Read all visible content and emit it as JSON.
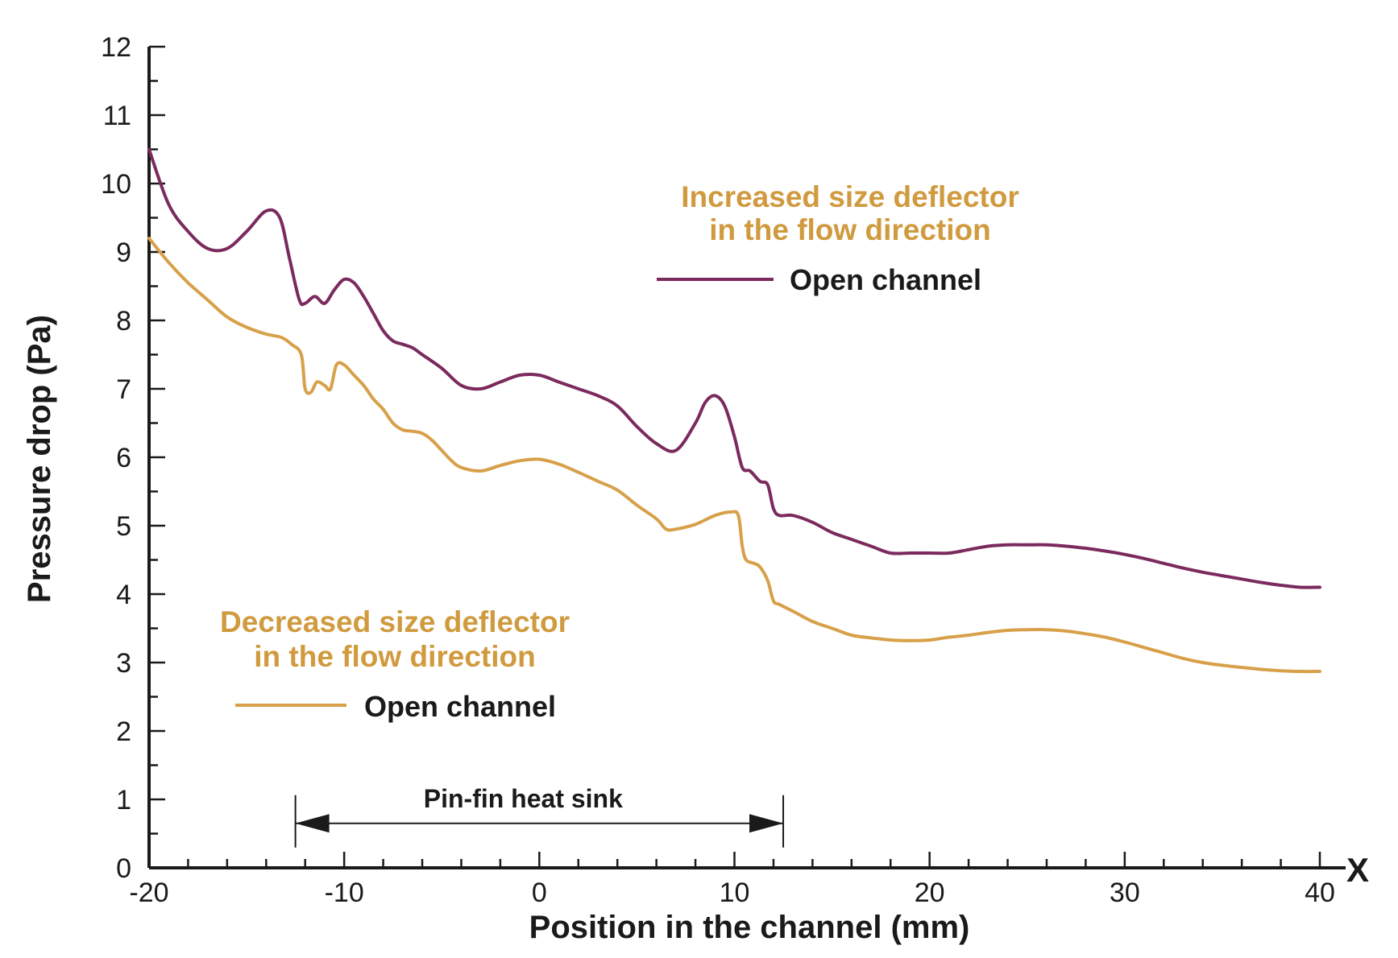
{
  "chart_data": {
    "type": "line",
    "xlabel": "Position in the channel (mm)",
    "ylabel": "Pressure drop (Pa)",
    "x_axis_marker": "X",
    "xlim": [
      -20,
      40
    ],
    "ylim": [
      0,
      12
    ],
    "x_ticks": [
      -20,
      -10,
      0,
      10,
      20,
      30,
      40
    ],
    "y_ticks": [
      0,
      1,
      2,
      3,
      4,
      5,
      6,
      7,
      8,
      9,
      10,
      11,
      12
    ],
    "x_tick_labels": [
      "-20",
      "-10",
      "0",
      "10",
      "20",
      "30",
      "40"
    ],
    "y_tick_labels": [
      "0",
      "1",
      "2",
      "3",
      "4",
      "5",
      "6",
      "7",
      "8",
      "9",
      "10",
      "11",
      "12"
    ],
    "grid": false,
    "series": [
      {
        "name": "Increased size deflector in the flow direction — Open channel",
        "legend_title_line1": "Increased size deflector",
        "legend_title_line2": "in the flow direction",
        "legend_label": "Open channel",
        "color": "#7b2a5e",
        "title_color": "#d09a3e",
        "x": [
          -20,
          -19,
          -18,
          -17,
          -16,
          -15,
          -14,
          -13.3,
          -12.8,
          -12.3,
          -12,
          -11.5,
          -11,
          -10.5,
          -10,
          -9.5,
          -9,
          -8.5,
          -8,
          -7.5,
          -7,
          -6.5,
          -6,
          -5,
          -4,
          -3,
          -2,
          -1,
          0,
          1,
          2,
          3,
          4,
          5,
          6,
          7,
          8,
          8.5,
          9,
          9.5,
          10,
          10.4,
          10.8,
          11.3,
          11.7,
          12,
          12.3,
          13,
          14,
          15,
          16,
          17,
          18,
          19,
          20,
          21,
          22,
          23,
          24,
          25,
          26,
          27,
          28,
          29,
          30,
          31,
          32,
          33,
          34,
          35,
          36,
          37,
          38,
          39,
          40
        ],
        "y": [
          10.5,
          9.7,
          9.3,
          9.05,
          9.05,
          9.3,
          9.6,
          9.5,
          8.9,
          8.3,
          8.25,
          8.35,
          8.25,
          8.45,
          8.6,
          8.55,
          8.35,
          8.1,
          7.85,
          7.7,
          7.65,
          7.6,
          7.5,
          7.3,
          7.05,
          7.0,
          7.1,
          7.2,
          7.2,
          7.1,
          7.0,
          6.9,
          6.75,
          6.45,
          6.2,
          6.1,
          6.5,
          6.8,
          6.9,
          6.75,
          6.3,
          5.85,
          5.8,
          5.65,
          5.6,
          5.25,
          5.15,
          5.15,
          5.05,
          4.9,
          4.8,
          4.7,
          4.6,
          4.6,
          4.6,
          4.6,
          4.65,
          4.7,
          4.72,
          4.72,
          4.72,
          4.7,
          4.67,
          4.63,
          4.58,
          4.52,
          4.45,
          4.38,
          4.32,
          4.27,
          4.22,
          4.17,
          4.13,
          4.1,
          4.1
        ]
      },
      {
        "name": "Decreased size deflector in the flow direction — Open channel",
        "legend_title_line1": "Decreased size deflector",
        "legend_title_line2": "in the flow direction",
        "legend_label": "Open channel",
        "color": "#d7a049",
        "title_color": "#d09a3e",
        "x": [
          -20,
          -19,
          -18,
          -17,
          -16,
          -15,
          -14,
          -13.2,
          -12.7,
          -12.2,
          -12,
          -11.7,
          -11.4,
          -11.0,
          -10.7,
          -10.4,
          -10.0,
          -9.5,
          -9,
          -8.5,
          -8,
          -7.5,
          -7,
          -6.5,
          -6,
          -5.5,
          -5,
          -4.5,
          -4,
          -3,
          -2,
          -1,
          0,
          1,
          2,
          3,
          4,
          5,
          6,
          6.5,
          7,
          8,
          9,
          9.8,
          10.2,
          10.4,
          10.6,
          11,
          11.3,
          11.7,
          12,
          12.3,
          13,
          14,
          15,
          16,
          17,
          18,
          19,
          20,
          21,
          22,
          23,
          24,
          25,
          26,
          27,
          28,
          29,
          30,
          31,
          32,
          33,
          34,
          35,
          36,
          37,
          38,
          39,
          40
        ],
        "y": [
          9.2,
          8.85,
          8.55,
          8.3,
          8.05,
          7.9,
          7.8,
          7.75,
          7.65,
          7.5,
          7.0,
          6.95,
          7.1,
          7.05,
          7.0,
          7.35,
          7.35,
          7.2,
          7.05,
          6.85,
          6.7,
          6.5,
          6.4,
          6.38,
          6.35,
          6.25,
          6.1,
          5.95,
          5.85,
          5.8,
          5.88,
          5.95,
          5.97,
          5.9,
          5.78,
          5.65,
          5.52,
          5.3,
          5.1,
          4.95,
          4.95,
          5.02,
          5.15,
          5.2,
          5.15,
          4.7,
          4.5,
          4.45,
          4.4,
          4.2,
          3.9,
          3.85,
          3.75,
          3.6,
          3.5,
          3.4,
          3.36,
          3.33,
          3.32,
          3.33,
          3.37,
          3.4,
          3.44,
          3.47,
          3.48,
          3.48,
          3.46,
          3.42,
          3.37,
          3.3,
          3.22,
          3.14,
          3.06,
          3.0,
          2.96,
          2.93,
          2.9,
          2.88,
          2.87,
          2.87
        ]
      }
    ],
    "annotations": [
      {
        "text": "Pin-fin heat sink",
        "x_start": -12.5,
        "x_end": 12.5,
        "y": 0.65
      }
    ]
  }
}
